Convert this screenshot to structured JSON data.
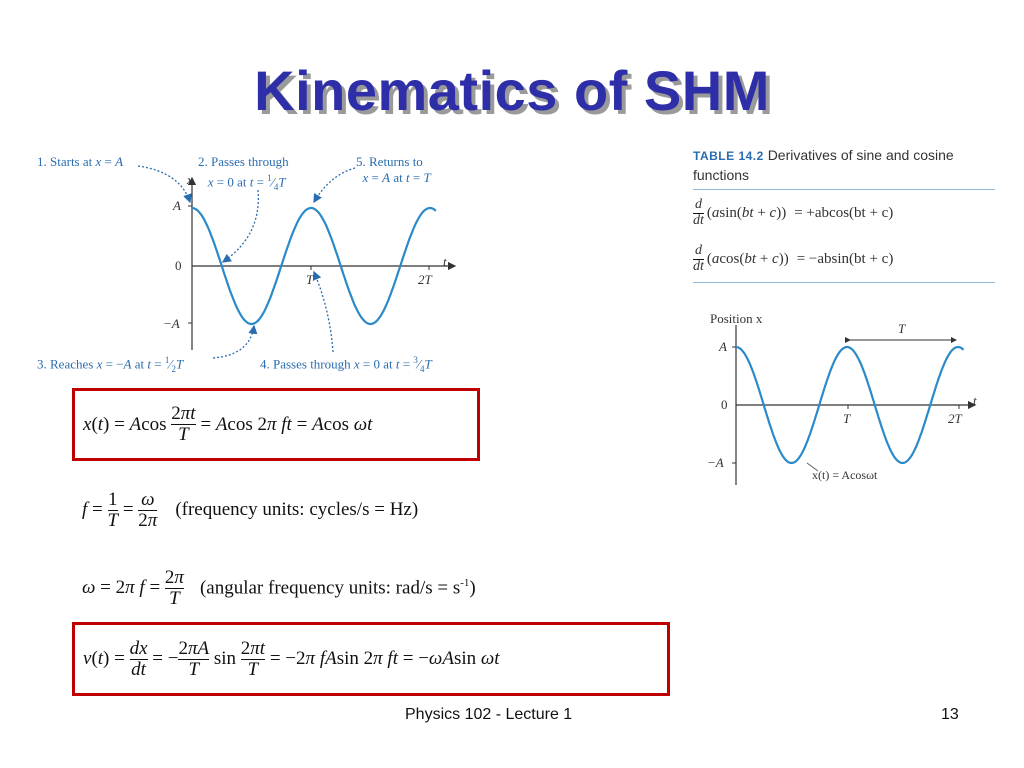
{
  "slide": {
    "title": "Kinematics of SHM",
    "footer_center": "Physics 102  -  Lecture 1",
    "page_number": "13"
  },
  "left_figure": {
    "annotations": {
      "starts": "1. Starts at",
      "passes1": "2. Passes through",
      "passes2_part": "= 0 at",
      "returns": "5. Returns to",
      "returns2_part": "at",
      "reaches": "3. Reaches",
      "reaches_part": "at",
      "passes_through": "4. Passes through",
      "passes_through_part": "= 0 at"
    },
    "axis_labels": {
      "x": "x",
      "t": "t",
      "A": "A",
      "zero": "0",
      "negA": "−A",
      "T": "T",
      "twoT": "2T"
    }
  },
  "table": {
    "tag": "TABLE 14.2",
    "caption_1": "Derivatives of sine and cosine",
    "caption_2": "functions",
    "row1_rhs": "= +abcos(bt + c)",
    "row2_rhs": "= −absin(bt + c)"
  },
  "right_figure": {
    "position_label": "Position x",
    "period_label": "T",
    "curve_label": "x(t) = Acosωt",
    "axis_labels": {
      "A": "A",
      "zero": "0",
      "negA": "−A",
      "T": "T",
      "twoT": "2T",
      "t": "t"
    }
  },
  "equations": {
    "freq_units": "(frequency units: cycles/s = Hz)",
    "angfreq_units_prefix": "(angular frequency units: rad/s = s",
    "angfreq_units_exp": "-1",
    "angfreq_units_suffix": ")"
  },
  "chart_data": [
    {
      "type": "line",
      "title": "",
      "xlabel": "t",
      "ylabel": "x",
      "x_ticks": [
        "T",
        "2T"
      ],
      "y_ticks": [
        "A",
        "0",
        "−A"
      ],
      "series": [
        {
          "function": "A cos(2π t / T)",
          "x_range_periods": [
            0,
            2.05
          ]
        }
      ]
    },
    {
      "type": "line",
      "title": "Position x",
      "xlabel": "t",
      "ylabel": "Position x",
      "x_ticks": [
        "T",
        "2T"
      ],
      "y_ticks": [
        "A",
        "0",
        "−A"
      ],
      "series": [
        {
          "name": "x(t) = Acosωt",
          "function": "A cos(ω t)",
          "x_range_periods": [
            0,
            2.05
          ]
        }
      ]
    }
  ]
}
